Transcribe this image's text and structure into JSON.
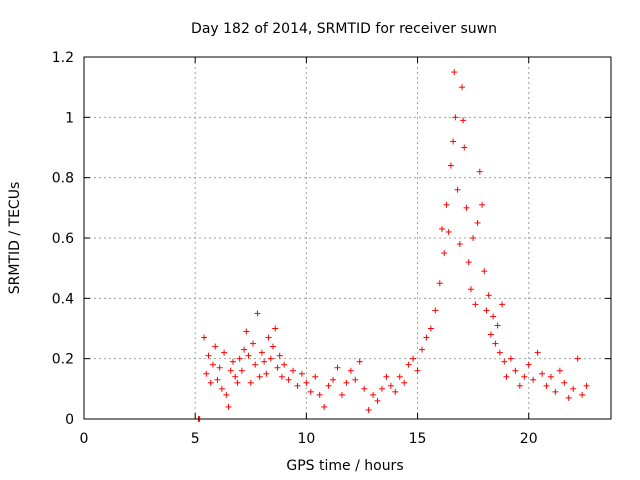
{
  "chart_data": {
    "type": "scatter",
    "title": "Day 182 of 2014, SRMTID for receiver suwn",
    "xlabel": "GPS time / hours",
    "ylabel": "SRMTID / TECUs",
    "xlim": [
      0,
      23.7
    ],
    "ylim": [
      0,
      1.2
    ],
    "grid": true,
    "marker": "+",
    "color": "#ff0000",
    "x_ticks": [
      {
        "value": 0,
        "label": "0"
      },
      {
        "value": 5,
        "label": "5"
      },
      {
        "value": 10,
        "label": "10"
      },
      {
        "value": 15,
        "label": "15"
      },
      {
        "value": 20,
        "label": "20"
      }
    ],
    "y_ticks": [
      {
        "value": 0,
        "label": "0"
      },
      {
        "value": 0.2,
        "label": "0.2"
      },
      {
        "value": 0.4,
        "label": "0.4"
      },
      {
        "value": 0.6,
        "label": "0.6"
      },
      {
        "value": 0.8,
        "label": "0.8"
      },
      {
        "value": 1.0,
        "label": "1"
      },
      {
        "value": 1.2,
        "label": "1.2"
      }
    ],
    "series": [
      {
        "name": "SRMTID",
        "points": [
          [
            5.15,
            0.0
          ],
          [
            5.2,
            0.0
          ],
          [
            5.4,
            0.27
          ],
          [
            5.5,
            0.15
          ],
          [
            5.6,
            0.21
          ],
          [
            5.7,
            0.12
          ],
          [
            5.8,
            0.18
          ],
          [
            5.9,
            0.24
          ],
          [
            6.0,
            0.13
          ],
          [
            6.1,
            0.17
          ],
          [
            6.2,
            0.1
          ],
          [
            6.3,
            0.22
          ],
          [
            6.4,
            0.08
          ],
          [
            6.5,
            0.04
          ],
          [
            6.6,
            0.16
          ],
          [
            6.7,
            0.19
          ],
          [
            6.8,
            0.14
          ],
          [
            6.9,
            0.12
          ],
          [
            7.0,
            0.2
          ],
          [
            7.1,
            0.16
          ],
          [
            7.2,
            0.23
          ],
          [
            7.3,
            0.29
          ],
          [
            7.4,
            0.21
          ],
          [
            7.5,
            0.12
          ],
          [
            7.6,
            0.25
          ],
          [
            7.7,
            0.18
          ],
          [
            7.8,
            0.35
          ],
          [
            7.9,
            0.14
          ],
          [
            8.0,
            0.22
          ],
          [
            8.1,
            0.19
          ],
          [
            8.2,
            0.15
          ],
          [
            8.3,
            0.27
          ],
          [
            8.4,
            0.2
          ],
          [
            8.5,
            0.24
          ],
          [
            8.6,
            0.3
          ],
          [
            8.7,
            0.17
          ],
          [
            8.8,
            0.21
          ],
          [
            8.9,
            0.14
          ],
          [
            9.0,
            0.18
          ],
          [
            9.2,
            0.13
          ],
          [
            9.4,
            0.16
          ],
          [
            9.6,
            0.11
          ],
          [
            9.8,
            0.15
          ],
          [
            10.0,
            0.12
          ],
          [
            10.2,
            0.09
          ],
          [
            10.4,
            0.14
          ],
          [
            10.6,
            0.08
          ],
          [
            10.8,
            0.04
          ],
          [
            11.0,
            0.11
          ],
          [
            11.2,
            0.13
          ],
          [
            11.4,
            0.17
          ],
          [
            11.6,
            0.08
          ],
          [
            11.8,
            0.12
          ],
          [
            12.0,
            0.16
          ],
          [
            12.2,
            0.13
          ],
          [
            12.4,
            0.19
          ],
          [
            12.6,
            0.1
          ],
          [
            12.8,
            0.03
          ],
          [
            13.0,
            0.08
          ],
          [
            13.2,
            0.06
          ],
          [
            13.4,
            0.1
          ],
          [
            13.6,
            0.14
          ],
          [
            13.8,
            0.11
          ],
          [
            14.0,
            0.09
          ],
          [
            14.2,
            0.14
          ],
          [
            14.4,
            0.12
          ],
          [
            14.6,
            0.18
          ],
          [
            14.8,
            0.2
          ],
          [
            15.0,
            0.16
          ],
          [
            15.2,
            0.23
          ],
          [
            15.4,
            0.27
          ],
          [
            15.6,
            0.3
          ],
          [
            15.8,
            0.36
          ],
          [
            16.0,
            0.45
          ],
          [
            16.1,
            0.63
          ],
          [
            16.2,
            0.55
          ],
          [
            16.3,
            0.71
          ],
          [
            16.4,
            0.62
          ],
          [
            16.5,
            0.84
          ],
          [
            16.6,
            0.92
          ],
          [
            16.65,
            1.15
          ],
          [
            16.7,
            1.0
          ],
          [
            16.8,
            0.76
          ],
          [
            16.9,
            0.58
          ],
          [
            17.0,
            1.1
          ],
          [
            17.05,
            0.99
          ],
          [
            17.1,
            0.9
          ],
          [
            17.2,
            0.7
          ],
          [
            17.3,
            0.52
          ],
          [
            17.4,
            0.43
          ],
          [
            17.5,
            0.6
          ],
          [
            17.6,
            0.38
          ],
          [
            17.7,
            0.65
          ],
          [
            17.8,
            0.82
          ],
          [
            17.9,
            0.71
          ],
          [
            18.0,
            0.49
          ],
          [
            18.1,
            0.36
          ],
          [
            18.2,
            0.41
          ],
          [
            18.3,
            0.28
          ],
          [
            18.4,
            0.34
          ],
          [
            18.5,
            0.25
          ],
          [
            18.6,
            0.31
          ],
          [
            18.7,
            0.22
          ],
          [
            18.8,
            0.38
          ],
          [
            18.9,
            0.19
          ],
          [
            19.0,
            0.14
          ],
          [
            19.2,
            0.2
          ],
          [
            19.4,
            0.16
          ],
          [
            19.6,
            0.11
          ],
          [
            19.8,
            0.14
          ],
          [
            20.0,
            0.18
          ],
          [
            20.2,
            0.13
          ],
          [
            20.4,
            0.22
          ],
          [
            20.6,
            0.15
          ],
          [
            20.8,
            0.11
          ],
          [
            21.0,
            0.14
          ],
          [
            21.2,
            0.09
          ],
          [
            21.4,
            0.16
          ],
          [
            21.6,
            0.12
          ],
          [
            21.8,
            0.07
          ],
          [
            22.0,
            0.1
          ],
          [
            22.2,
            0.2
          ],
          [
            22.4,
            0.08
          ],
          [
            22.6,
            0.11
          ]
        ]
      }
    ]
  }
}
